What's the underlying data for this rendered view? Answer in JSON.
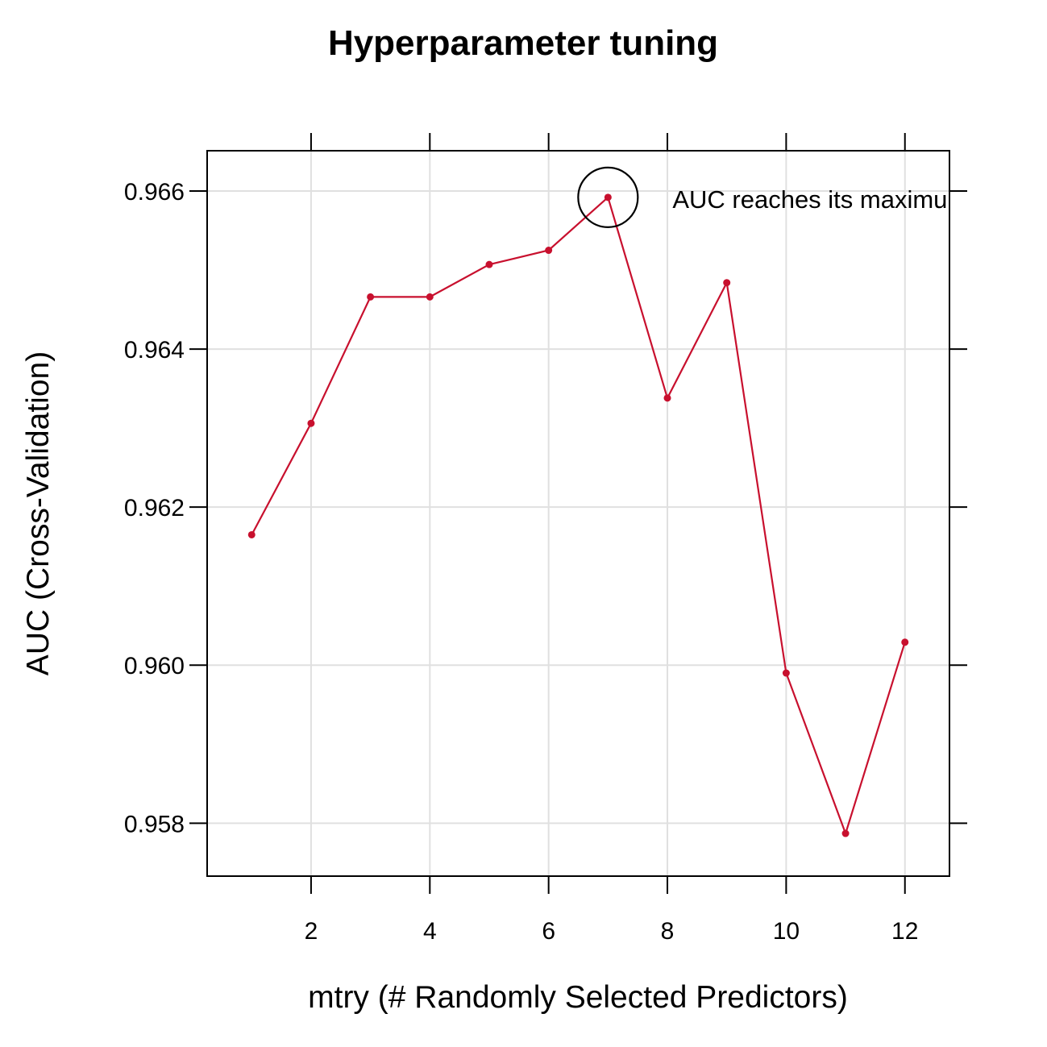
{
  "chart_data": {
    "type": "line",
    "title": "Hyperparameter tuning",
    "xlabel": "mtry (# Randomly Selected Predictors)",
    "ylabel": "AUC (Cross-Validation)",
    "xlim": [
      0.25,
      12.75
    ],
    "ylim": [
      0.95733,
      0.96651
    ],
    "x_ticks": [
      2,
      4,
      6,
      8,
      10,
      12
    ],
    "x_tick_labels": [
      "2",
      "4",
      "6",
      "8",
      "10",
      "12"
    ],
    "y_ticks": [
      0.958,
      0.96,
      0.962,
      0.964,
      0.966
    ],
    "y_tick_labels": [
      "0.958",
      "0.960",
      "0.962",
      "0.964",
      "0.966"
    ],
    "grid": true,
    "series": [
      {
        "color": "#c8102e",
        "x": [
          1,
          2,
          3,
          4,
          5,
          6,
          7,
          8,
          9,
          10,
          11,
          12
        ],
        "values": [
          0.96165,
          0.96306,
          0.96466,
          0.96466,
          0.96507,
          0.96525,
          0.96592,
          0.96338,
          0.96484,
          0.9599,
          0.95787,
          0.96029
        ]
      }
    ],
    "annotation": {
      "text": "AUC reaches its maximum",
      "x": 7,
      "y": 0.96592
    }
  }
}
